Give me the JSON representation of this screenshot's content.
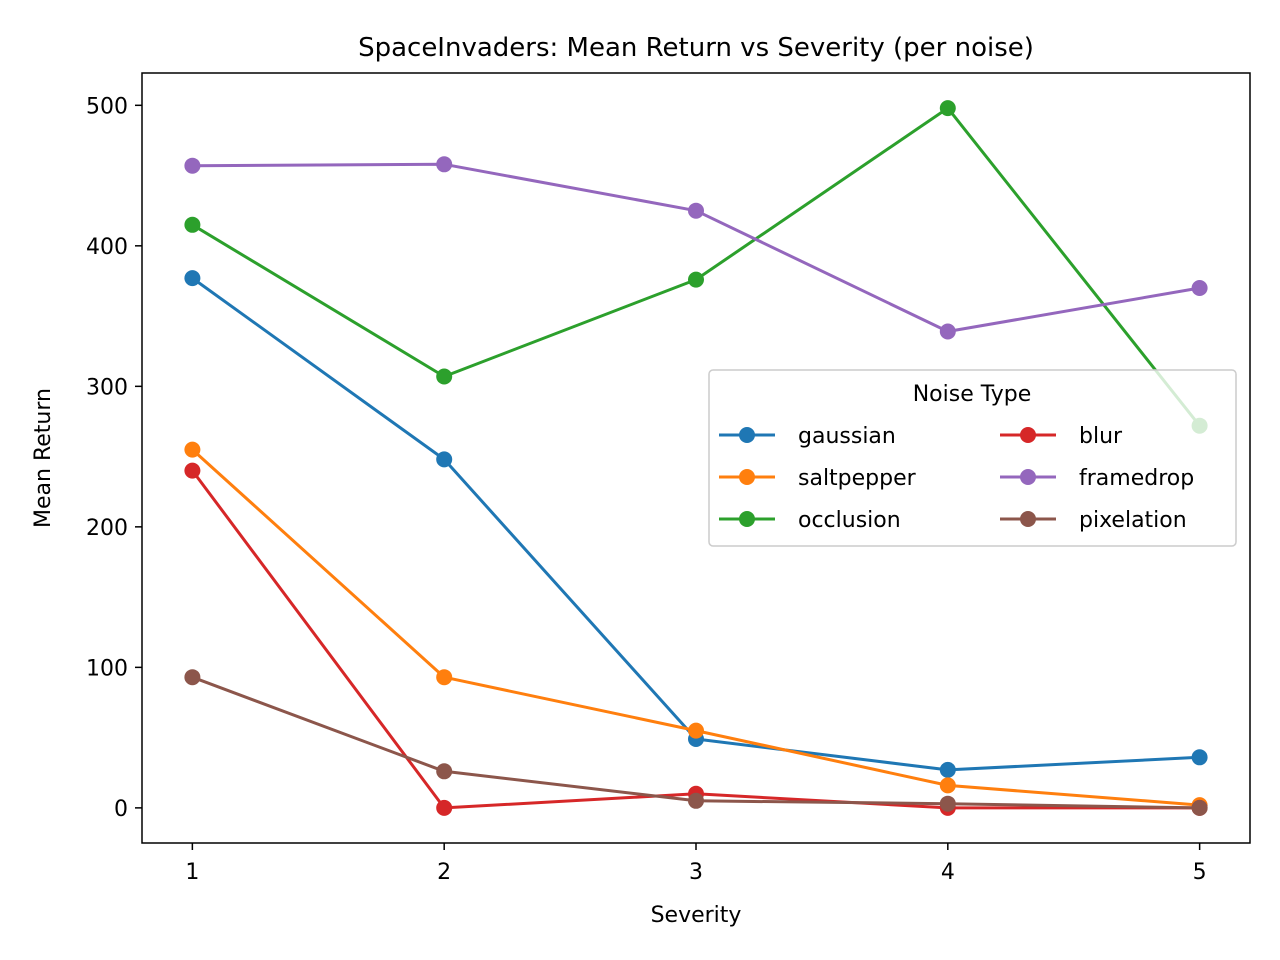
{
  "chart_data": {
    "type": "line",
    "title": "SpaceInvaders: Mean Return vs Severity (per noise)",
    "xlabel": "Severity",
    "ylabel": "Mean Return",
    "x": [
      1,
      2,
      3,
      4,
      5
    ],
    "xlim": [
      0.8,
      5.2
    ],
    "ylim": [
      -25,
      523
    ],
    "xticks": [
      "1",
      "2",
      "3",
      "4",
      "5"
    ],
    "yticks": [
      0,
      100,
      200,
      300,
      400,
      500
    ],
    "grid": false,
    "legend": {
      "title": "Noise Type",
      "placement": "center-right",
      "columns": 2
    },
    "series": [
      {
        "name": "gaussian",
        "color": "#1f77b4",
        "values": [
          377,
          248,
          49,
          27,
          36
        ]
      },
      {
        "name": "saltpepper",
        "color": "#ff7f0e",
        "values": [
          255,
          93,
          55,
          16,
          2
        ]
      },
      {
        "name": "occlusion",
        "color": "#2ca02c",
        "values": [
          415,
          307,
          376,
          498,
          272
        ]
      },
      {
        "name": "blur",
        "color": "#d62728",
        "values": [
          240,
          0,
          10,
          0,
          0
        ]
      },
      {
        "name": "framedrop",
        "color": "#9467bd",
        "values": [
          457,
          458,
          425,
          339,
          370
        ]
      },
      {
        "name": "pixelation",
        "color": "#8c564b",
        "values": [
          93,
          26,
          5,
          3,
          0
        ]
      }
    ]
  }
}
